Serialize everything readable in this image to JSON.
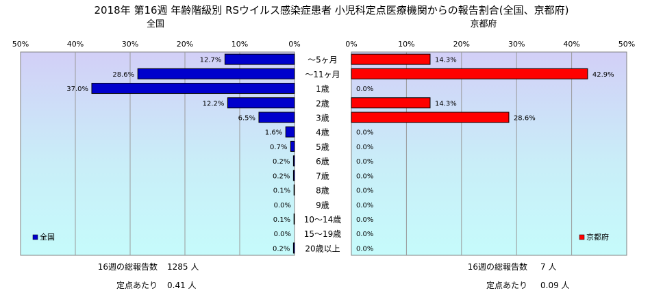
{
  "chart_data": {
    "type": "bar",
    "title": "2018年 第16週 年齢階級別 RSウイルス感染症患者 小児科定点医療機関からの報告割合(全国、京都府)",
    "categories": [
      "～5ヶ月",
      "～11ヶ月",
      "1歳",
      "2歳",
      "3歳",
      "4歳",
      "5歳",
      "6歳",
      "7歳",
      "8歳",
      "9歳",
      "10～14歳",
      "15～19歳",
      "20歳以上"
    ],
    "x_tick_labels": [
      "50%",
      "40%",
      "30%",
      "20%",
      "10%",
      "0%"
    ],
    "x_tick_labels_right": [
      "0%",
      "10%",
      "20%",
      "30%",
      "40%",
      "50%"
    ],
    "xlim": [
      0,
      50
    ],
    "grid": true,
    "series": [
      {
        "name": "全国",
        "panel_title": "全国",
        "legend": "全国",
        "color": "#0000cc",
        "values": [
          12.7,
          28.6,
          37.0,
          12.2,
          6.5,
          1.6,
          0.7,
          0.2,
          0.2,
          0.1,
          0.0,
          0.1,
          0.0,
          0.2
        ],
        "value_labels": [
          "12.7%",
          "28.6%",
          "37.0%",
          "12.2%",
          "6.5%",
          "1.6%",
          "0.7%",
          "0.2%",
          "0.2%",
          "0.1%",
          "0.0%",
          "0.1%",
          "0.0%",
          "0.2%"
        ],
        "legend_position": "bottom-left",
        "footer": [
          {
            "label": "16週の総報告数",
            "value": "1285 人"
          },
          {
            "label": "定点あたり",
            "value": "0.41 人"
          }
        ]
      },
      {
        "name": "京都府",
        "panel_title": "京都府",
        "legend": "京都府",
        "color": "#ff0000",
        "values": [
          14.3,
          42.9,
          0.0,
          14.3,
          28.6,
          0.0,
          0.0,
          0.0,
          0.0,
          0.0,
          0.0,
          0.0,
          0.0,
          0.0
        ],
        "value_labels": [
          "14.3%",
          "42.9%",
          "0.0%",
          "14.3%",
          "28.6%",
          "0.0%",
          "0.0%",
          "0.0%",
          "0.0%",
          "0.0%",
          "0.0%",
          "0.0%",
          "0.0%",
          "0.0%"
        ],
        "legend_position": "bottom-right",
        "footer": [
          {
            "label": "16週の総報告数",
            "value": "7 人"
          },
          {
            "label": "定点あたり",
            "value": "0.09 人"
          }
        ]
      }
    ]
  }
}
